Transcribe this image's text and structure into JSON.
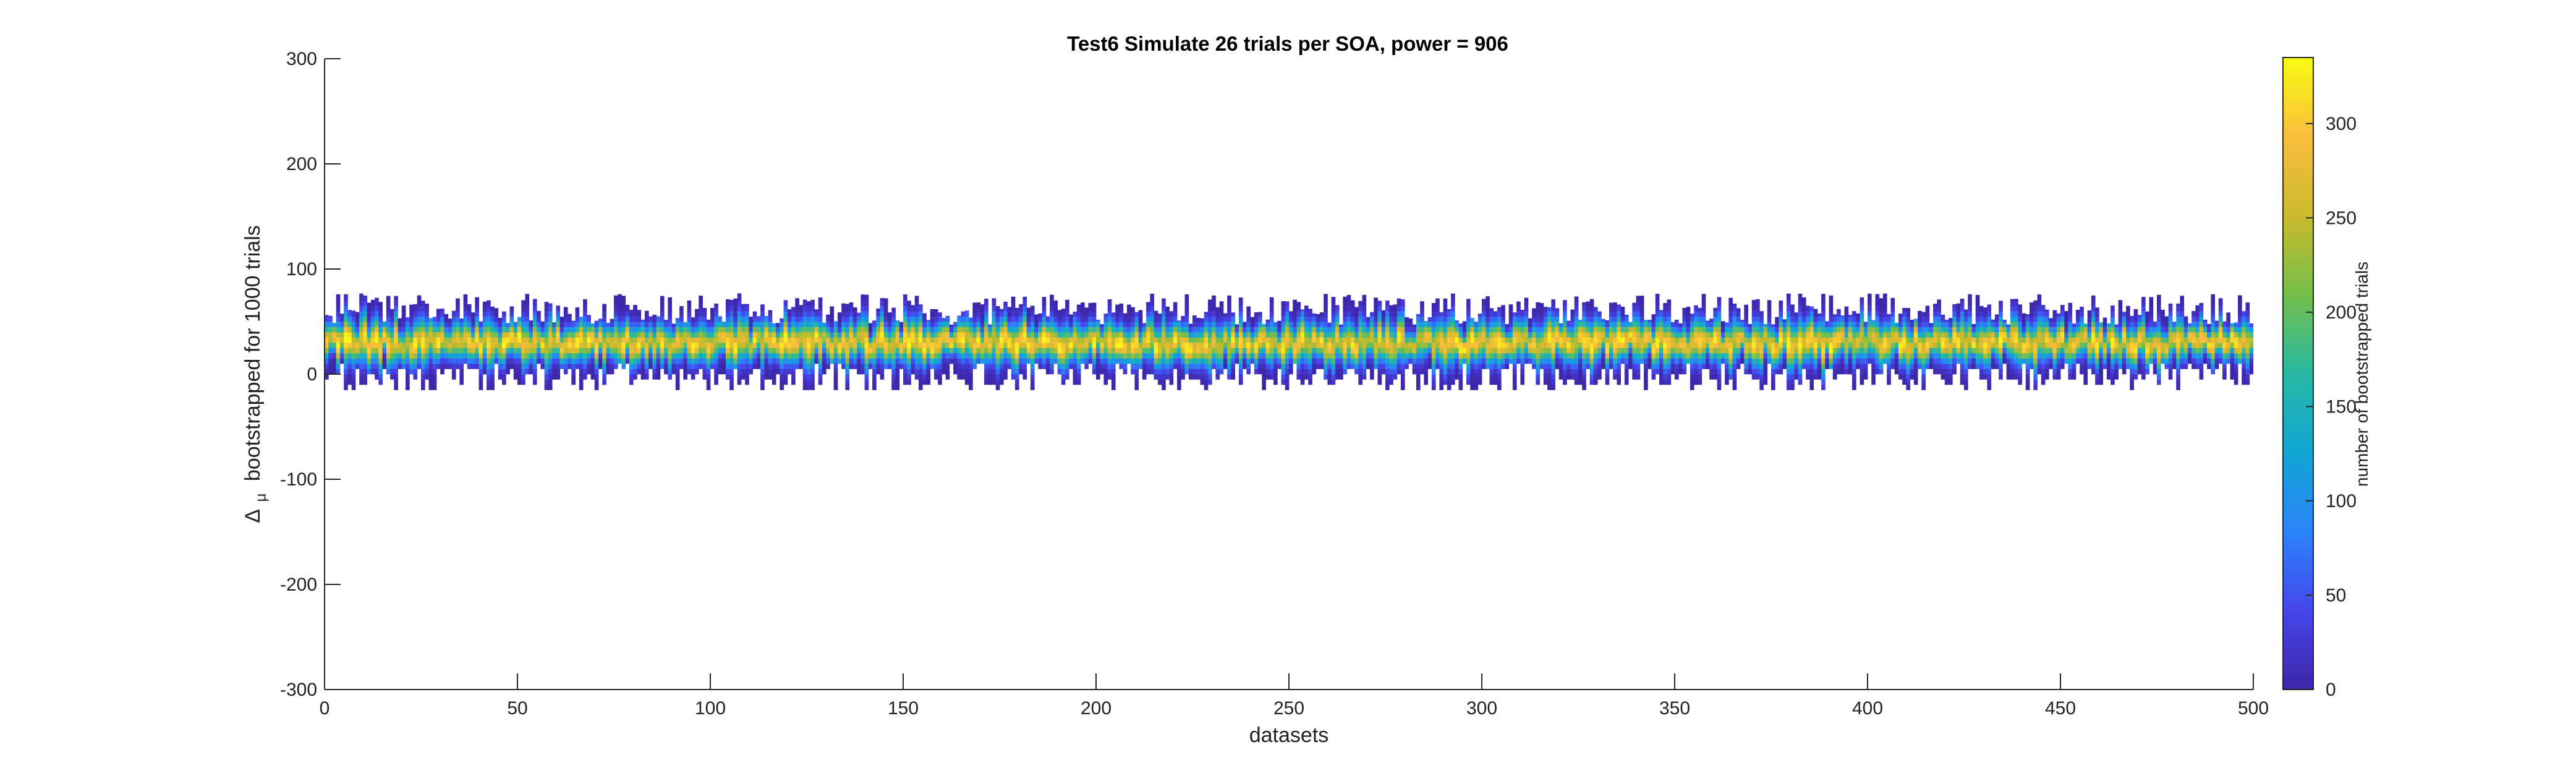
{
  "chart_data": {
    "type": "heatmap",
    "title": "Test6 Simulate 26 trials per SOA, power = 906",
    "xlabel": "datasets",
    "ylabel_symbol": "Δ",
    "ylabel_subscript": "μ",
    "ylabel_rest": "bootstrapped for 1000 trials",
    "xlim": [
      0,
      500
    ],
    "ylim": [
      -300,
      300
    ],
    "xticks": [
      0,
      50,
      100,
      150,
      200,
      250,
      300,
      350,
      400,
      450,
      500
    ],
    "yticks": [
      -300,
      -200,
      -100,
      0,
      100,
      200,
      300
    ],
    "grid": false,
    "colorbar": {
      "label": "number of bootstrapped trials",
      "range": [
        0,
        335
      ],
      "ticks": [
        0,
        50,
        100,
        150,
        200,
        250,
        300
      ],
      "colormap": "parula"
    },
    "distribution": {
      "datasets": 500,
      "bin_width": 5,
      "center_typical": 30,
      "upper_typical": 62,
      "upper_max": 96,
      "lower_typical": 2,
      "lower_min": -37,
      "peak_count_max": 335
    }
  }
}
